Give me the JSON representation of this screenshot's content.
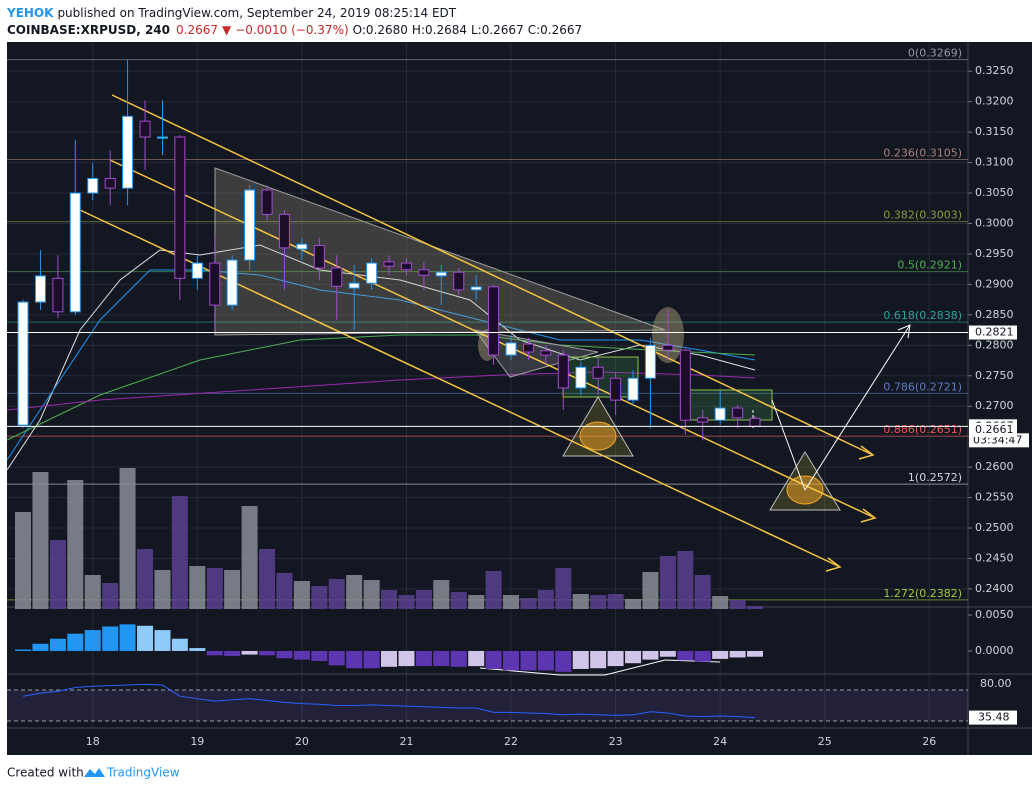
{
  "header": {
    "author": "YEHOK",
    "published": "published on TradingView.com, September 24, 2019 08:25:14 EDT",
    "symbol": "COINBASE:XRPUSD, 240",
    "price": "0.2667",
    "change": "−0.0010 (−0.37%)",
    "open": "O:0.2680",
    "high": "H:0.2684",
    "low": "L:0.2667",
    "close": "C:0.2667"
  },
  "footer": {
    "created": "Created with",
    "brand": "TradingView"
  },
  "chart_data": {
    "type": "candlestick",
    "x": [
      17.333,
      17.5,
      17.667,
      17.833,
      18,
      18.167,
      18.333,
      18.5,
      18.667,
      18.833,
      19,
      19.167,
      19.333,
      19.5,
      19.667,
      19.833,
      20,
      20.167,
      20.333,
      20.5,
      20.667,
      20.833,
      21,
      21.167,
      21.333,
      21.5,
      21.667,
      21.833,
      22,
      22.167,
      22.333,
      22.5,
      22.667,
      22.833,
      23,
      23.167,
      23.333,
      23.5,
      23.667,
      23.833,
      24,
      24.167,
      24.333
    ],
    "open": [
      0.2669,
      0.2871,
      0.291,
      0.2855,
      0.305,
      0.3074,
      0.3058,
      0.3168,
      0.314,
      0.3142,
      0.291,
      0.2935,
      0.2866,
      0.294,
      0.3055,
      0.3015,
      0.2958,
      0.2964,
      0.2927,
      0.2894,
      0.2902,
      0.2937,
      0.2935,
      0.2924,
      0.2914,
      0.292,
      0.2891,
      0.2896,
      0.2784,
      0.2802,
      0.2791,
      0.2784,
      0.273,
      0.2764,
      0.2746,
      0.271,
      0.2746,
      0.28,
      0.2792,
      0.2681,
      0.2677,
      0.2697,
      0.268
    ],
    "high": [
      0.2875,
      0.2956,
      0.2948,
      0.3137,
      0.3099,
      0.312,
      0.3268,
      0.3202,
      0.3202,
      0.3145,
      0.2948,
      0.2981,
      0.2948,
      0.3063,
      0.3063,
      0.3022,
      0.2976,
      0.2976,
      0.2948,
      0.2932,
      0.2943,
      0.2948,
      0.2943,
      0.2937,
      0.2932,
      0.2927,
      0.2915,
      0.2899,
      0.2817,
      0.2812,
      0.28,
      0.2792,
      0.2772,
      0.2779,
      0.2756,
      0.2759,
      0.2812,
      0.2859,
      0.2795,
      0.2694,
      0.2726,
      0.2702,
      0.2684
    ],
    "low": [
      0.2664,
      0.2858,
      0.2845,
      0.285,
      0.3038,
      0.303,
      0.303,
      0.3088,
      0.3112,
      0.2874,
      0.2891,
      0.2825,
      0.2858,
      0.2923,
      0.3005,
      0.2891,
      0.294,
      0.2907,
      0.2841,
      0.2825,
      0.2891,
      0.2915,
      0.2915,
      0.2891,
      0.2866,
      0.2882,
      0.2874,
      0.2768,
      0.2776,
      0.2776,
      0.2768,
      0.2694,
      0.2718,
      0.2718,
      0.2686,
      0.2702,
      0.2664,
      0.2776,
      0.2653,
      0.2644,
      0.2669,
      0.2664,
      0.2667
    ],
    "close": [
      0.2871,
      0.2914,
      0.2855,
      0.305,
      0.3074,
      0.3058,
      0.3176,
      0.3142,
      0.3142,
      0.291,
      0.2935,
      0.2866,
      0.294,
      0.3055,
      0.3015,
      0.296,
      0.2966,
      0.2927,
      0.2897,
      0.2902,
      0.2935,
      0.293,
      0.2924,
      0.2915,
      0.292,
      0.2891,
      0.2896,
      0.2784,
      0.2804,
      0.2789,
      0.2784,
      0.273,
      0.2764,
      0.2746,
      0.271,
      0.2746,
      0.28,
      0.2792,
      0.2677,
      0.2674,
      0.2697,
      0.2681,
      0.2667
    ],
    "volume": [
      97,
      137,
      69,
      129,
      34,
      26,
      141,
      60,
      39,
      113,
      43,
      41,
      39,
      103,
      60,
      36,
      28,
      23,
      30,
      34,
      29,
      19,
      14,
      19,
      29,
      17,
      14,
      38,
      14,
      11,
      19,
      41,
      15,
      14,
      15,
      10,
      37,
      53,
      58,
      34,
      13,
      9,
      3
    ],
    "xlim": [
      17.18,
      26.37
    ],
    "xticks": [
      18,
      19,
      20,
      21,
      22,
      23,
      24,
      25,
      26
    ],
    "ylim": [
      0.2372,
      0.3298
    ],
    "yticks": [
      {
        "value": 0.24,
        "label": "0.2400"
      },
      {
        "value": 0.245,
        "label": "0.2450"
      },
      {
        "value": 0.25,
        "label": "0.2500"
      },
      {
        "value": 0.255,
        "label": "0.2550"
      },
      {
        "value": 0.26,
        "label": "0.2600"
      },
      {
        "value": 0.265,
        "label": "0.2650"
      },
      {
        "value": 0.27,
        "label": "0.2700"
      },
      {
        "value": 0.275,
        "label": "0.2750"
      },
      {
        "value": 0.28,
        "label": "0.2800"
      },
      {
        "value": 0.285,
        "label": "0.2850"
      },
      {
        "value": 0.29,
        "label": "0.2900"
      },
      {
        "value": 0.295,
        "label": "0.2950"
      },
      {
        "value": 0.3,
        "label": "0.3000"
      },
      {
        "value": 0.305,
        "label": "0.3050"
      },
      {
        "value": 0.31,
        "label": "0.3100"
      },
      {
        "value": 0.315,
        "label": "0.3150"
      },
      {
        "value": 0.32,
        "label": "0.3200"
      },
      {
        "value": 0.325,
        "label": "0.3250"
      }
    ],
    "fib": [
      {
        "label": "0(0.3269)",
        "value": 0.3269,
        "color": "#9598a1"
      },
      {
        "label": "0.236(0.3105)",
        "value": 0.3105,
        "color": "#a9807a"
      },
      {
        "label": "0.382(0.3003)",
        "value": 0.3003,
        "color": "#8f9a3c"
      },
      {
        "label": "0.5(0.2921)",
        "value": 0.2921,
        "color": "#4caf50"
      },
      {
        "label": "0.618(0.2838)",
        "value": 0.2838,
        "color": "#26a69a"
      },
      {
        "label": "0.786(0.2721)",
        "value": 0.2721,
        "color": "#5b7bbf"
      },
      {
        "label": "0.886(0.2651)",
        "value": 0.2651,
        "color": "#ef5350"
      },
      {
        "label": "1(0.2572)",
        "value": 0.2572,
        "color": "#d1d4dc"
      },
      {
        "label": "1.272(0.2382)",
        "value": 0.2382,
        "color": "#9ccc3c"
      }
    ],
    "price_tags": [
      0.2821,
      0.2667,
      0.2661
    ],
    "countdown": "03:34:47",
    "macd": {
      "hist": [
        0.0002,
        0.001,
        0.0017,
        0.0024,
        0.0029,
        0.0034,
        0.0037,
        0.0035,
        0.0029,
        0.0017,
        0.0004,
        -0.0006,
        -0.0007,
        -0.0005,
        -0.0006,
        -0.001,
        -0.0012,
        -0.0014,
        -0.002,
        -0.0024,
        -0.0024,
        -0.0022,
        -0.0021,
        -0.0021,
        -0.0021,
        -0.0022,
        -0.0021,
        -0.0025,
        -0.0027,
        -0.0027,
        -0.0027,
        -0.0029,
        -0.0025,
        -0.0024,
        -0.0021,
        -0.0017,
        -0.0012,
        -0.0008,
        -0.0013,
        -0.0015,
        -0.0011,
        -0.0009,
        -0.0008
      ],
      "lim": [
        -0.00306,
        0.00583
      ],
      "ticks": [
        {
          "value": 0.005,
          "label": "0.0050"
        },
        {
          "value": 0,
          "label": "0.0000"
        }
      ]
    },
    "rsi": {
      "values": [
        70,
        75,
        78,
        84,
        86,
        87,
        88,
        89,
        88,
        70,
        66,
        62,
        64,
        66,
        63,
        60,
        58,
        57,
        55,
        55,
        56,
        55,
        54,
        53,
        52,
        51,
        51,
        44,
        44,
        43,
        42,
        40,
        41,
        40,
        39,
        40,
        45,
        43,
        38,
        37,
        38,
        37,
        35.48
      ],
      "lim": [
        18.7,
        102.6
      ],
      "band": [
        30,
        80
      ],
      "ticks": [
        {
          "value": 80,
          "label": "80.00"
        }
      ]
    },
    "up_color": "#ffffff",
    "up_border": "#2196f3",
    "down_color": "#1c0d2b",
    "down_border": "#a24bd0",
    "grid": true
  }
}
